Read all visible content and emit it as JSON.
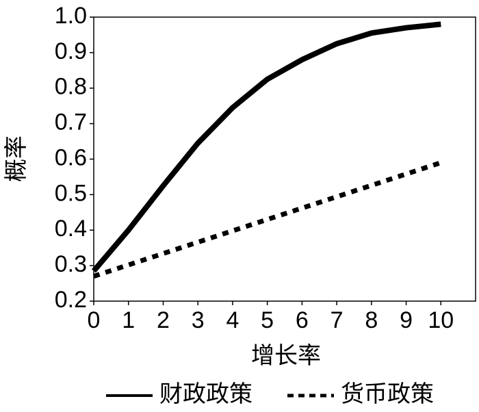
{
  "chart_data": {
    "type": "line",
    "x": [
      0,
      1,
      2,
      3,
      4,
      5,
      6,
      7,
      8,
      9,
      10
    ],
    "series": [
      {
        "name": "财政政策",
        "color": "#000000",
        "dash": "solid",
        "values": [
          0.285,
          0.4,
          0.525,
          0.645,
          0.745,
          0.825,
          0.88,
          0.925,
          0.955,
          0.97,
          0.98
        ]
      },
      {
        "name": "货币政策",
        "color": "#000000",
        "dash": "dashed",
        "values": [
          0.27,
          0.302,
          0.334,
          0.366,
          0.398,
          0.43,
          0.462,
          0.494,
          0.526,
          0.558,
          0.59
        ]
      }
    ],
    "xlabel": "增长率",
    "ylabel": "概率",
    "xlim": [
      0,
      11
    ],
    "xticks": [
      0,
      1,
      2,
      3,
      4,
      5,
      6,
      7,
      8,
      9,
      10
    ],
    "ylim": [
      0.2,
      1.0
    ],
    "yticks": [
      0.2,
      0.3,
      0.4,
      0.5,
      0.6,
      0.7,
      0.8,
      0.9,
      {
        "value": 1.0,
        "label": "1.0"
      }
    ],
    "grid": false,
    "legend": "bottom"
  }
}
